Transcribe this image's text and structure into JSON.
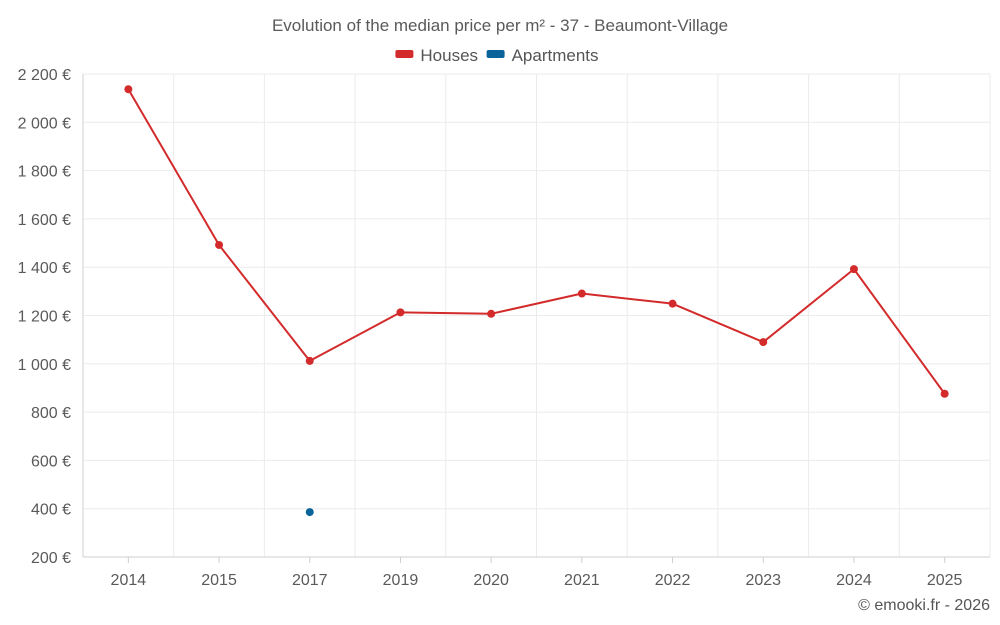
{
  "chart_data": {
    "type": "line",
    "title": "Evolution of the median price per m² - 37 - Beaumont-Village",
    "categories": [
      "2014",
      "2015",
      "2017",
      "2019",
      "2020",
      "2021",
      "2022",
      "2023",
      "2024",
      "2025"
    ],
    "ylim": [
      200,
      2200
    ],
    "yticks": [
      200,
      400,
      600,
      800,
      1000,
      1200,
      1400,
      1600,
      1800,
      2000,
      2200
    ],
    "ytick_labels": [
      "200 €",
      "400 €",
      "600 €",
      "800 €",
      "1 000 €",
      "1 200 €",
      "1 400 €",
      "1 600 €",
      "1 800 €",
      "2 000 €",
      "2 200 €"
    ],
    "grid": true,
    "legend_position": "top-center",
    "series": [
      {
        "name": "Houses",
        "color": "#d32b2b",
        "values": [
          2137,
          1492,
          1012,
          1213,
          1207,
          1291,
          1249,
          1090,
          1392,
          876
        ]
      },
      {
        "name": "Apartments",
        "color": "#0a6399",
        "values": [
          null,
          null,
          386,
          null,
          null,
          null,
          null,
          null,
          null,
          null
        ]
      }
    ]
  },
  "credit": "© emooki.fr - 2026"
}
